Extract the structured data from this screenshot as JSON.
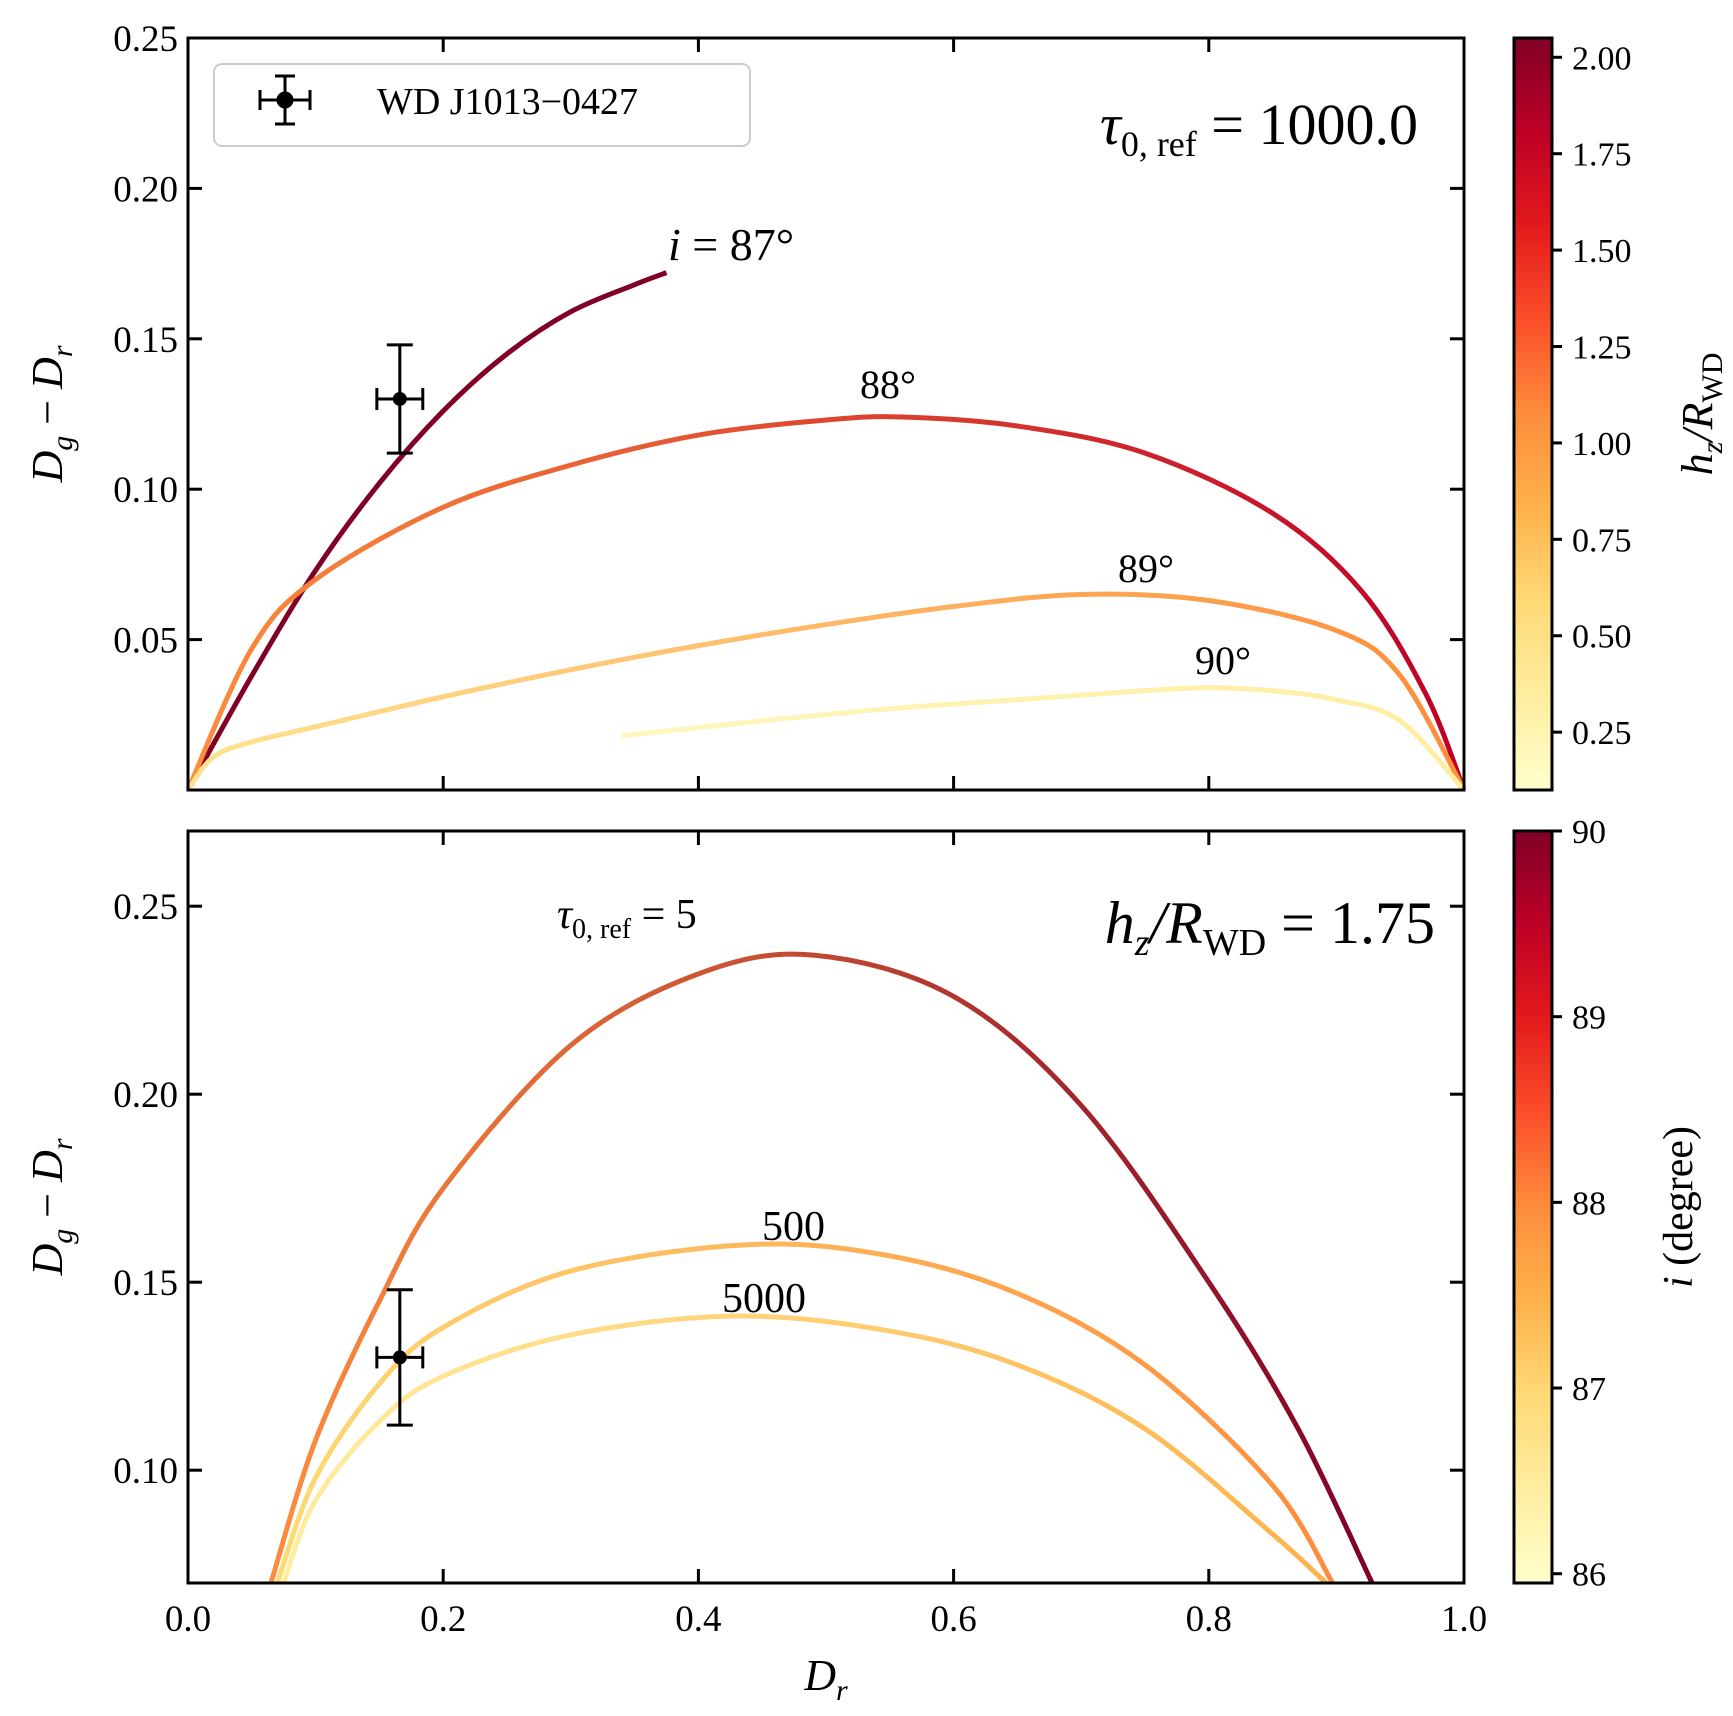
{
  "chart_data": [
    {
      "type": "line",
      "panel": "top",
      "title": "",
      "xlabel": "",
      "ylabel": "D_g − D_r",
      "ylabel_parts": {
        "main": "D",
        "sub_g": "g",
        "minus": " − ",
        "sub_r": "r"
      },
      "xlim": [
        0.0,
        1.0
      ],
      "ylim": [
        0.0,
        0.25
      ],
      "yticks": [
        "0.05",
        "0.10",
        "0.15",
        "0.20",
        "0.25"
      ],
      "ytick_values": [
        0.05,
        0.1,
        0.15,
        0.2,
        0.25
      ],
      "xtick_values": [
        0.2,
        0.4,
        0.6,
        0.8,
        1.0
      ],
      "annotation_main": {
        "symbol": "τ",
        "sub": "0, ref",
        "rhs": " = 1000.0"
      },
      "series": [
        {
          "name": "i = 87°",
          "label_parts": {
            "var": "i",
            "rhs": " = 87°"
          },
          "x": [
            0.0,
            0.05,
            0.1,
            0.15,
            0.2,
            0.25,
            0.3,
            0.35,
            0.375
          ],
          "y": [
            0.0,
            0.038,
            0.073,
            0.102,
            0.126,
            0.145,
            0.159,
            0.168,
            0.172
          ],
          "color_range": [
            "#800026",
            "#800026"
          ]
        },
        {
          "name": "88°",
          "x": [
            0.0,
            0.05,
            0.1,
            0.2,
            0.3,
            0.4,
            0.5,
            0.56,
            0.65,
            0.75,
            0.85,
            0.92,
            0.97,
            1.0
          ],
          "y": [
            0.0,
            0.047,
            0.07,
            0.094,
            0.108,
            0.118,
            0.123,
            0.124,
            0.121,
            0.112,
            0.092,
            0.066,
            0.032,
            0.0
          ],
          "color_range": [
            "#fd8d3c",
            "#bd0026"
          ]
        },
        {
          "name": "89°",
          "x": [
            0.0,
            0.02,
            0.05,
            0.1,
            0.2,
            0.3,
            0.4,
            0.5,
            0.6,
            0.7,
            0.8,
            0.9,
            0.95,
            1.0
          ],
          "y": [
            0.0,
            0.011,
            0.016,
            0.021,
            0.031,
            0.04,
            0.048,
            0.055,
            0.061,
            0.065,
            0.063,
            0.053,
            0.038,
            0.0
          ],
          "color_range": [
            "#fee391",
            "#fd8d3c"
          ]
        },
        {
          "name": "90°",
          "x": [
            0.34,
            0.45,
            0.55,
            0.65,
            0.75,
            0.8,
            0.85,
            0.9,
            0.95,
            1.0
          ],
          "y": [
            0.018,
            0.023,
            0.027,
            0.03,
            0.033,
            0.034,
            0.033,
            0.03,
            0.023,
            0.0
          ],
          "color_range": [
            "#fff6bf",
            "#ffeda0"
          ]
        }
      ],
      "point": {
        "name": "WD J1013−0427",
        "x": 0.166,
        "y": 0.13,
        "xerr": 0.018,
        "yerr": 0.018
      },
      "legend": {
        "label": "WD J1013−0427",
        "placement": "top-left"
      },
      "colorbar": {
        "label": "h_z/R_WD",
        "label_parts": {
          "var": "h",
          "sub": "z",
          "slash": "/R",
          "sub2": "WD"
        },
        "range": [
          0.1,
          2.05
        ],
        "ticks": [
          "0.25",
          "0.50",
          "0.75",
          "1.00",
          "1.25",
          "1.50",
          "1.75",
          "2.00"
        ],
        "tick_values": [
          0.25,
          0.5,
          0.75,
          1.0,
          1.25,
          1.5,
          1.75,
          2.0
        ]
      }
    },
    {
      "type": "line",
      "panel": "bottom",
      "title": "",
      "xlabel": "D_r",
      "xlabel_parts": {
        "main": "D",
        "sub": "r"
      },
      "ylabel": "D_g − D_r",
      "ylabel_parts": {
        "main": "D",
        "sub_g": "g",
        "minus": " − ",
        "sub_r": "r"
      },
      "xlim": [
        0.0,
        1.0
      ],
      "ylim": [
        0.07,
        0.27
      ],
      "xticks": [
        "0.0",
        "0.2",
        "0.4",
        "0.6",
        "0.8",
        "1.0"
      ],
      "xtick_values": [
        0.0,
        0.2,
        0.4,
        0.6,
        0.8,
        1.0
      ],
      "yticks": [
        "0.10",
        "0.15",
        "0.20",
        "0.25"
      ],
      "ytick_values": [
        0.1,
        0.15,
        0.2,
        0.25
      ],
      "annotation_main": {
        "var": "h",
        "sub": "z",
        "slash": "/R",
        "sub2": "WD",
        "rhs": " = 1.75"
      },
      "annotation_tau": {
        "symbol": "τ",
        "sub": "0, ref",
        "rhs": " = 5"
      },
      "series": [
        {
          "name": "τ0, ref = 5",
          "x": [
            0.065,
            0.1,
            0.15,
            0.2,
            0.3,
            0.4,
            0.49,
            0.6,
            0.7,
            0.8,
            0.87,
            0.928
          ],
          "y": [
            0.07,
            0.108,
            0.145,
            0.175,
            0.213,
            0.232,
            0.237,
            0.226,
            0.197,
            0.15,
            0.111,
            0.07
          ],
          "color_range": [
            "#fd8d3c",
            "#800026"
          ]
        },
        {
          "name": "500",
          "x": [
            0.07,
            0.1,
            0.15,
            0.2,
            0.3,
            0.44,
            0.55,
            0.65,
            0.75,
            0.85,
            0.897
          ],
          "y": [
            0.07,
            0.098,
            0.123,
            0.138,
            0.153,
            0.16,
            0.157,
            0.147,
            0.128,
            0.096,
            0.07
          ],
          "color_range": [
            "#fed976",
            "#fd8d3c"
          ]
        },
        {
          "name": "5000",
          "x": [
            0.075,
            0.1,
            0.15,
            0.2,
            0.3,
            0.43,
            0.55,
            0.65,
            0.75,
            0.85,
            0.892
          ],
          "y": [
            0.07,
            0.092,
            0.113,
            0.125,
            0.136,
            0.141,
            0.137,
            0.128,
            0.111,
            0.083,
            0.07
          ],
          "color_range": [
            "#ffeda0",
            "#feb24c"
          ]
        }
      ],
      "point": {
        "x": 0.166,
        "y": 0.13,
        "xerr": 0.018,
        "yerr": 0.018
      },
      "colorbar": {
        "label": "i (degree)",
        "label_parts": {
          "var": "i",
          "rest": " (degree)"
        },
        "range": [
          85.95,
          90.0
        ],
        "ticks": [
          "86",
          "87",
          "88",
          "89",
          "90"
        ],
        "tick_values": [
          86,
          87,
          88,
          89,
          90
        ]
      }
    }
  ]
}
